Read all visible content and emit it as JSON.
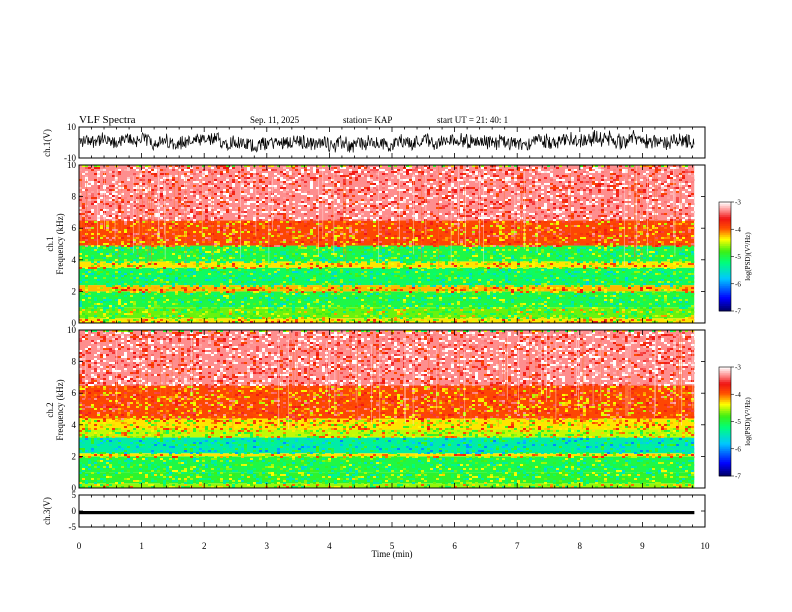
{
  "header": {
    "title": "VLF Spectra",
    "date": "Sep. 11, 2025",
    "station": "station= KAP",
    "start": "start  UT  =   21: 40: 1"
  },
  "chart_data": [
    {
      "type": "line",
      "panel": "ch1-waveform",
      "ylabel": "ch.1(V)",
      "ylim": [
        -10,
        10
      ],
      "yticks": [
        "10",
        "-10"
      ],
      "x_range_min": [
        0,
        9.83
      ],
      "color": "#000000"
    },
    {
      "type": "heatmap",
      "panel": "ch1-spectrogram",
      "ylabel": "ch.1\nFrequency (kHz)",
      "ylim": [
        0,
        10
      ],
      "yticks": [
        "0",
        "2",
        "4",
        "6",
        "8",
        "10"
      ],
      "x_range_min": [
        0,
        9.83
      ],
      "bands_khz": [
        {
          "from": 0.0,
          "to": 0.3,
          "level": -4.3
        },
        {
          "from": 0.3,
          "to": 1.0,
          "level": -4.7
        },
        {
          "from": 1.0,
          "to": 2.0,
          "level": -5.0
        },
        {
          "from": 2.0,
          "to": 2.4,
          "level": -4.2
        },
        {
          "from": 2.4,
          "to": 3.5,
          "level": -5.1
        },
        {
          "from": 3.5,
          "to": 3.9,
          "level": -4.3
        },
        {
          "from": 3.9,
          "to": 4.9,
          "level": -5.0
        },
        {
          "from": 4.9,
          "to": 6.5,
          "level": -3.9
        },
        {
          "from": 6.5,
          "to": 10.0,
          "level": -3.3
        }
      ],
      "colorbar": {
        "label": "log(PSD)(V²/Hz)",
        "range": [
          -7,
          -3
        ],
        "ticks": [
          "-3",
          "-4",
          "-5",
          "-6",
          "-7"
        ]
      }
    },
    {
      "type": "heatmap",
      "panel": "ch2-spectrogram",
      "ylabel": "ch.2\nFrequency (kHz)",
      "ylim": [
        0,
        10
      ],
      "yticks": [
        "0",
        "2",
        "4",
        "6",
        "8",
        "10"
      ],
      "x_range_min": [
        0,
        9.83
      ],
      "bands_khz": [
        {
          "from": 0.0,
          "to": 0.3,
          "level": -4.6
        },
        {
          "from": 0.3,
          "to": 1.0,
          "level": -4.9
        },
        {
          "from": 1.0,
          "to": 2.0,
          "level": -5.0
        },
        {
          "from": 2.0,
          "to": 2.2,
          "level": -4.3
        },
        {
          "from": 2.2,
          "to": 3.2,
          "level": -5.4
        },
        {
          "from": 3.2,
          "to": 3.7,
          "level": -4.5
        },
        {
          "from": 3.7,
          "to": 4.4,
          "level": -4.3
        },
        {
          "from": 4.4,
          "to": 6.5,
          "level": -3.9
        },
        {
          "from": 6.5,
          "to": 10.0,
          "level": -3.3
        }
      ],
      "colorbar": {
        "label": "log(PSD)(V²/Hz)",
        "range": [
          -7,
          -3
        ],
        "ticks": [
          "-3",
          "-4",
          "-5",
          "-6",
          "-7"
        ]
      }
    },
    {
      "type": "line",
      "panel": "ch3-waveform",
      "ylabel": "ch.3(V)",
      "ylim": [
        -5,
        5
      ],
      "yticks": [
        "5",
        "0",
        "-5"
      ],
      "x_range_min": [
        0,
        9.83
      ],
      "approx_band": [
        -1,
        0
      ],
      "color": "#000000"
    }
  ],
  "x_axis": {
    "label": "Time (min)",
    "range": [
      0,
      10
    ],
    "ticks": [
      "0",
      "1",
      "2",
      "3",
      "4",
      "5",
      "6",
      "7",
      "8",
      "9",
      "10"
    ]
  }
}
